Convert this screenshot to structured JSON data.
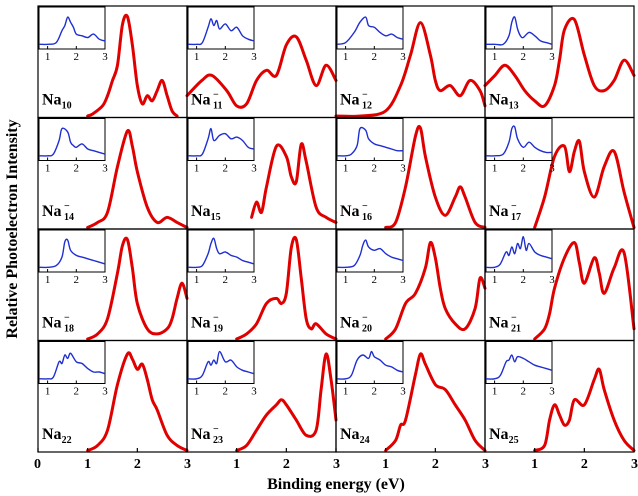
{
  "chart_data": {
    "type": "line",
    "xlabel": "Binding energy (eV)",
    "ylabel": "Relative Photoelectron Intensity",
    "x_ticks": [
      "0",
      "1",
      "2",
      "3"
    ],
    "x_range": [
      0,
      3
    ],
    "inset_x_ticks": [
      "1",
      "2",
      "3"
    ],
    "inset_x_range": [
      0.7,
      3.0
    ],
    "grid": "4x4 panels",
    "colors": {
      "main_series": "#e00000",
      "inset_series": "#1f2fd0",
      "frame": "#000000"
    },
    "panels": [
      {
        "label": "Na",
        "size": "10",
        "charge": "",
        "inset": {
          "x": [
            0.7,
            1.0,
            1.3,
            1.5,
            1.6,
            1.7,
            1.8,
            1.9,
            2.0,
            2.2,
            2.4,
            2.6,
            2.8,
            3.0
          ],
          "y": [
            0.05,
            0.05,
            0.1,
            0.45,
            0.6,
            0.85,
            0.7,
            0.55,
            0.35,
            0.3,
            0.25,
            0.35,
            0.2,
            0.15
          ]
        },
        "x": [
          1.0,
          1.1,
          1.3,
          1.4,
          1.5,
          1.6,
          1.7,
          1.8,
          1.9,
          2.0,
          2.1,
          2.2,
          2.3,
          2.4,
          2.5,
          2.6,
          2.7,
          2.8
        ],
        "y": [
          0.0,
          0.02,
          0.1,
          0.2,
          0.35,
          0.5,
          0.9,
          0.98,
          0.7,
          0.3,
          0.12,
          0.2,
          0.15,
          0.25,
          0.35,
          0.2,
          0.05,
          0.0
        ]
      },
      {
        "label": "Na",
        "size": "11",
        "charge": "−",
        "inset": {
          "x": [
            0.7,
            1.0,
            1.2,
            1.4,
            1.5,
            1.6,
            1.7,
            1.8,
            2.0,
            2.2,
            2.4,
            2.6,
            2.8,
            3.0
          ],
          "y": [
            0.05,
            0.05,
            0.1,
            0.55,
            0.8,
            0.6,
            0.75,
            0.5,
            0.65,
            0.45,
            0.55,
            0.3,
            0.2,
            0.15
          ]
        },
        "x": [
          0.0,
          0.3,
          0.5,
          0.8,
          1.0,
          1.2,
          1.4,
          1.6,
          1.8,
          2.0,
          2.2,
          2.4,
          2.6,
          2.8,
          3.0
        ],
        "y": [
          0.2,
          0.35,
          0.4,
          0.25,
          0.1,
          0.12,
          0.35,
          0.45,
          0.4,
          0.7,
          0.78,
          0.55,
          0.3,
          0.5,
          0.35
        ]
      },
      {
        "label": "Na",
        "size": "12",
        "charge": "−",
        "inset": {
          "x": [
            0.7,
            1.0,
            1.3,
            1.5,
            1.7,
            1.8,
            2.0,
            2.2,
            2.4,
            2.6,
            2.8,
            3.0
          ],
          "y": [
            0.05,
            0.1,
            0.4,
            0.7,
            0.85,
            0.6,
            0.55,
            0.4,
            0.3,
            0.35,
            0.25,
            0.2
          ]
        },
        "x": [
          0.0,
          0.5,
          1.0,
          1.3,
          1.5,
          1.7,
          1.9,
          2.0,
          2.1,
          2.3,
          2.5,
          2.7,
          2.9,
          3.0
        ],
        "y": [
          0.0,
          0.0,
          0.05,
          0.3,
          0.6,
          0.92,
          0.6,
          0.35,
          0.25,
          0.3,
          0.2,
          0.35,
          0.25,
          0.1
        ]
      },
      {
        "label": "Na",
        "size": "13",
        "charge": "",
        "inset": {
          "x": [
            0.7,
            1.0,
            1.3,
            1.5,
            1.6,
            1.7,
            1.8,
            1.9,
            2.0,
            2.2,
            2.4,
            2.6,
            2.8,
            3.0
          ],
          "y": [
            0.05,
            0.05,
            0.05,
            0.3,
            0.7,
            0.85,
            0.5,
            0.3,
            0.25,
            0.4,
            0.3,
            0.15,
            0.1,
            0.05
          ]
        },
        "x": [
          0.0,
          0.2,
          0.4,
          0.6,
          0.8,
          1.0,
          1.2,
          1.4,
          1.5,
          1.6,
          1.8,
          2.0,
          2.2,
          2.4,
          2.6,
          2.8,
          3.0
        ],
        "y": [
          0.3,
          0.4,
          0.5,
          0.4,
          0.25,
          0.15,
          0.1,
          0.3,
          0.55,
          0.85,
          0.95,
          0.6,
          0.3,
          0.25,
          0.35,
          0.55,
          0.4
        ]
      },
      {
        "label": "Na",
        "size": "14",
        "charge": "−",
        "inset": {
          "x": [
            0.7,
            1.0,
            1.2,
            1.4,
            1.5,
            1.7,
            1.8,
            1.9,
            2.0,
            2.2,
            2.4,
            2.6,
            2.8,
            3.0
          ],
          "y": [
            0.05,
            0.05,
            0.1,
            0.5,
            0.85,
            0.75,
            0.45,
            0.35,
            0.3,
            0.4,
            0.25,
            0.2,
            0.15,
            0.1
          ]
        },
        "x": [
          1.0,
          1.2,
          1.4,
          1.6,
          1.8,
          1.9,
          2.0,
          2.2,
          2.4,
          2.6,
          2.8,
          3.0
        ],
        "y": [
          0.0,
          0.05,
          0.15,
          0.6,
          0.95,
          0.8,
          0.55,
          0.2,
          0.05,
          0.1,
          0.05,
          0.0
        ]
      },
      {
        "label": "Na",
        "size": "15",
        "charge": "",
        "inset": {
          "x": [
            0.7,
            1.0,
            1.2,
            1.4,
            1.5,
            1.6,
            1.8,
            2.0,
            2.2,
            2.4,
            2.6,
            2.8,
            3.0
          ],
          "y": [
            0.05,
            0.05,
            0.1,
            0.55,
            0.85,
            0.5,
            0.65,
            0.7,
            0.55,
            0.6,
            0.5,
            0.3,
            0.25
          ]
        },
        "x": [
          1.3,
          1.4,
          1.5,
          1.6,
          1.8,
          2.0,
          2.1,
          2.2,
          2.3,
          2.4,
          2.6,
          2.8,
          3.0
        ],
        "y": [
          0.1,
          0.25,
          0.15,
          0.4,
          0.8,
          0.7,
          0.5,
          0.45,
          0.82,
          0.65,
          0.2,
          0.1,
          0.05
        ]
      },
      {
        "label": "Na",
        "size": "16",
        "charge": "−",
        "inset": {
          "x": [
            0.7,
            1.0,
            1.2,
            1.4,
            1.5,
            1.7,
            1.8,
            2.0,
            2.2,
            2.4,
            2.6,
            2.8,
            3.0
          ],
          "y": [
            0.05,
            0.05,
            0.1,
            0.35,
            0.85,
            0.8,
            0.55,
            0.4,
            0.35,
            0.3,
            0.25,
            0.2,
            0.2
          ]
        },
        "x": [
          1.0,
          1.2,
          1.4,
          1.6,
          1.7,
          1.8,
          2.0,
          2.2,
          2.4,
          2.5,
          2.6,
          2.8,
          3.0
        ],
        "y": [
          0.0,
          0.05,
          0.4,
          0.9,
          0.98,
          0.7,
          0.3,
          0.12,
          0.3,
          0.4,
          0.3,
          0.05,
          0.0
        ]
      },
      {
        "label": "Na",
        "size": "17",
        "charge": "−",
        "inset": {
          "x": [
            0.7,
            1.0,
            1.3,
            1.5,
            1.6,
            1.7,
            1.8,
            2.0,
            2.2,
            2.4,
            2.6,
            2.8,
            3.0
          ],
          "y": [
            0.05,
            0.05,
            0.1,
            0.45,
            0.85,
            0.9,
            0.55,
            0.3,
            0.45,
            0.3,
            0.2,
            0.15,
            0.15
          ]
        },
        "x": [
          1.0,
          1.2,
          1.4,
          1.6,
          1.7,
          1.8,
          1.9,
          2.0,
          2.2,
          2.4,
          2.6,
          2.8,
          3.0
        ],
        "y": [
          0.0,
          0.3,
          0.7,
          0.8,
          0.55,
          0.75,
          0.85,
          0.55,
          0.3,
          0.6,
          0.75,
          0.35,
          0.0
        ]
      },
      {
        "label": "Na",
        "size": "18",
        "charge": "−",
        "inset": {
          "x": [
            0.7,
            1.0,
            1.3,
            1.5,
            1.6,
            1.7,
            1.8,
            2.0,
            2.2,
            2.4,
            2.6,
            2.8,
            3.0
          ],
          "y": [
            0.05,
            0.05,
            0.1,
            0.35,
            0.8,
            0.85,
            0.55,
            0.4,
            0.35,
            0.3,
            0.25,
            0.2,
            0.15
          ]
        },
        "x": [
          1.0,
          1.2,
          1.4,
          1.6,
          1.7,
          1.8,
          1.9,
          2.0,
          2.2,
          2.4,
          2.6,
          2.7,
          2.8,
          2.9,
          3.0
        ],
        "y": [
          0.0,
          0.05,
          0.2,
          0.65,
          0.92,
          0.98,
          0.7,
          0.35,
          0.1,
          0.05,
          0.1,
          0.2,
          0.4,
          0.55,
          0.4
        ]
      },
      {
        "label": "Na",
        "size": "19",
        "charge": "−",
        "inset": {
          "x": [
            0.7,
            1.0,
            1.2,
            1.4,
            1.5,
            1.6,
            1.7,
            1.8,
            2.0,
            2.2,
            2.4,
            2.6,
            2.8,
            3.0
          ],
          "y": [
            0.05,
            0.05,
            0.1,
            0.45,
            0.75,
            0.9,
            0.6,
            0.45,
            0.5,
            0.4,
            0.35,
            0.25,
            0.2,
            0.15
          ]
        },
        "x": [
          1.0,
          1.2,
          1.4,
          1.6,
          1.8,
          1.9,
          2.0,
          2.1,
          2.2,
          2.3,
          2.4,
          2.5,
          2.6,
          2.8,
          3.0
        ],
        "y": [
          0.0,
          0.05,
          0.15,
          0.35,
          0.4,
          0.35,
          0.45,
          0.9,
          0.98,
          0.6,
          0.2,
          0.1,
          0.15,
          0.05,
          0.0
        ]
      },
      {
        "label": "Na",
        "size": "20",
        "charge": "−",
        "inset": {
          "x": [
            0.7,
            1.0,
            1.3,
            1.5,
            1.6,
            1.7,
            1.8,
            2.0,
            2.2,
            2.4,
            2.6,
            2.8,
            3.0
          ],
          "y": [
            0.05,
            0.05,
            0.1,
            0.4,
            0.7,
            0.85,
            0.65,
            0.55,
            0.6,
            0.45,
            0.35,
            0.3,
            0.25
          ]
        },
        "x": [
          1.0,
          1.2,
          1.4,
          1.6,
          1.8,
          1.9,
          2.0,
          2.1,
          2.2,
          2.4,
          2.6,
          2.8,
          2.9,
          3.0
        ],
        "y": [
          0.0,
          0.1,
          0.35,
          0.45,
          0.7,
          0.95,
          0.8,
          0.5,
          0.3,
          0.15,
          0.1,
          0.3,
          0.6,
          0.5
        ]
      },
      {
        "label": "Na",
        "size": "21",
        "charge": "−",
        "inset": {
          "x": [
            0.7,
            1.0,
            1.2,
            1.4,
            1.5,
            1.6,
            1.7,
            1.8,
            1.9,
            2.0,
            2.1,
            2.2,
            2.4,
            2.6,
            2.8,
            3.0
          ],
          "y": [
            0.05,
            0.05,
            0.15,
            0.5,
            0.4,
            0.65,
            0.45,
            0.75,
            0.6,
            0.95,
            0.55,
            0.75,
            0.5,
            0.4,
            0.35,
            0.3
          ]
        },
        "x": [
          1.0,
          1.2,
          1.3,
          1.4,
          1.6,
          1.8,
          1.9,
          2.0,
          2.2,
          2.3,
          2.4,
          2.6,
          2.8,
          3.0
        ],
        "y": [
          0.0,
          0.1,
          0.25,
          0.5,
          0.8,
          0.95,
          0.75,
          0.55,
          0.8,
          0.65,
          0.45,
          0.7,
          0.85,
          0.1
        ]
      },
      {
        "label": "Na",
        "size": "22",
        "charge": "",
        "inset": {
          "x": [
            0.7,
            1.0,
            1.2,
            1.4,
            1.5,
            1.6,
            1.7,
            1.8,
            2.0,
            2.2,
            2.4,
            2.6,
            2.8,
            3.0
          ],
          "y": [
            0.05,
            0.05,
            0.1,
            0.55,
            0.5,
            0.75,
            0.65,
            0.8,
            0.55,
            0.5,
            0.35,
            0.25,
            0.25,
            0.2
          ]
        },
        "x": [
          1.0,
          1.2,
          1.4,
          1.6,
          1.8,
          1.9,
          2.0,
          2.1,
          2.2,
          2.3,
          2.4,
          2.6,
          2.8,
          3.0
        ],
        "y": [
          0.0,
          0.05,
          0.2,
          0.65,
          0.95,
          0.9,
          0.8,
          0.85,
          0.7,
          0.5,
          0.4,
          0.15,
          0.05,
          0.0
        ]
      },
      {
        "label": "Na",
        "size": "23",
        "charge": "−",
        "inset": {
          "x": [
            0.7,
            1.0,
            1.2,
            1.4,
            1.5,
            1.6,
            1.7,
            1.8,
            2.0,
            2.2,
            2.4,
            2.6,
            2.8,
            3.0
          ],
          "y": [
            0.05,
            0.05,
            0.15,
            0.55,
            0.45,
            0.6,
            0.5,
            0.85,
            0.55,
            0.6,
            0.4,
            0.3,
            0.25,
            0.2
          ]
        },
        "x": [
          1.0,
          1.2,
          1.4,
          1.6,
          1.8,
          1.9,
          2.0,
          2.2,
          2.4,
          2.6,
          2.7,
          2.8,
          2.9,
          3.0
        ],
        "y": [
          0.0,
          0.05,
          0.2,
          0.35,
          0.45,
          0.5,
          0.45,
          0.3,
          0.15,
          0.2,
          0.6,
          0.95,
          0.7,
          0.3
        ]
      },
      {
        "label": "Na",
        "size": "24",
        "charge": "",
        "inset": {
          "x": [
            0.7,
            1.0,
            1.2,
            1.4,
            1.6,
            1.8,
            1.9,
            2.0,
            2.2,
            2.4,
            2.6,
            2.8,
            3.0
          ],
          "y": [
            0.05,
            0.05,
            0.15,
            0.6,
            0.75,
            0.65,
            0.85,
            0.7,
            0.6,
            0.45,
            0.4,
            0.3,
            0.25
          ]
        },
        "x": [
          1.0,
          1.2,
          1.3,
          1.4,
          1.6,
          1.7,
          1.8,
          2.0,
          2.2,
          2.4,
          2.6,
          2.8,
          3.0
        ],
        "y": [
          0.0,
          0.1,
          0.25,
          0.3,
          0.75,
          0.95,
          0.85,
          0.65,
          0.6,
          0.45,
          0.3,
          0.1,
          0.0
        ]
      },
      {
        "label": "Na",
        "size": "25",
        "charge": "",
        "inset": {
          "x": [
            0.7,
            1.0,
            1.2,
            1.4,
            1.5,
            1.6,
            1.7,
            1.8,
            2.0,
            2.2,
            2.4,
            2.6,
            2.8,
            3.0
          ],
          "y": [
            0.05,
            0.05,
            0.15,
            0.55,
            0.6,
            0.75,
            0.55,
            0.7,
            0.65,
            0.55,
            0.45,
            0.4,
            0.35,
            0.3
          ]
        },
        "x": [
          1.0,
          1.2,
          1.3,
          1.4,
          1.5,
          1.6,
          1.7,
          1.8,
          2.0,
          2.2,
          2.3,
          2.4,
          2.6,
          2.8,
          3.0
        ],
        "y": [
          0.0,
          0.05,
          0.3,
          0.45,
          0.35,
          0.25,
          0.3,
          0.5,
          0.45,
          0.7,
          0.8,
          0.6,
          0.3,
          0.1,
          0.0
        ]
      }
    ]
  }
}
